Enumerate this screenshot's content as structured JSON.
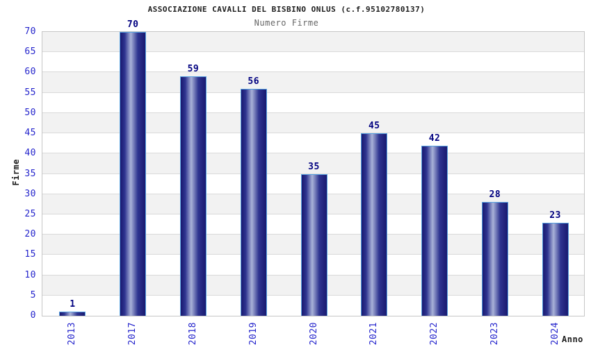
{
  "chart_data": {
    "type": "bar",
    "title": "ASSOCIAZIONE CAVALLI DEL BISBINO ONLUS (c.f.95102780137)",
    "subtitle": "Numero Firme",
    "xlabel": "Anno",
    "ylabel": "Firme",
    "categories": [
      "2013",
      "2017",
      "2018",
      "2019",
      "2020",
      "2021",
      "2022",
      "2023",
      "2024"
    ],
    "values": [
      1,
      70,
      59,
      56,
      35,
      45,
      42,
      28,
      23
    ],
    "ylim": [
      0,
      70
    ],
    "ytick_step": 5,
    "grid": "horizontal-banded-stripes",
    "legend": "none",
    "colors": {
      "background": "#ffffff",
      "title": "#1c1c1c",
      "subtitle": "#666666",
      "axis_title": "#1c1c1c",
      "tick_label": "#2424cc",
      "value_label": "#000080",
      "bar_edge_dark": "#191970",
      "bar_mid": "#2e3490",
      "bar_highlight": "#a9b2d8",
      "bar_border": "#55a0e0",
      "band_white": "#ffffff",
      "band_gray": "#f2f2f2",
      "gridline": "#d9d9d9",
      "plot_border": "#c6c6c6"
    }
  }
}
